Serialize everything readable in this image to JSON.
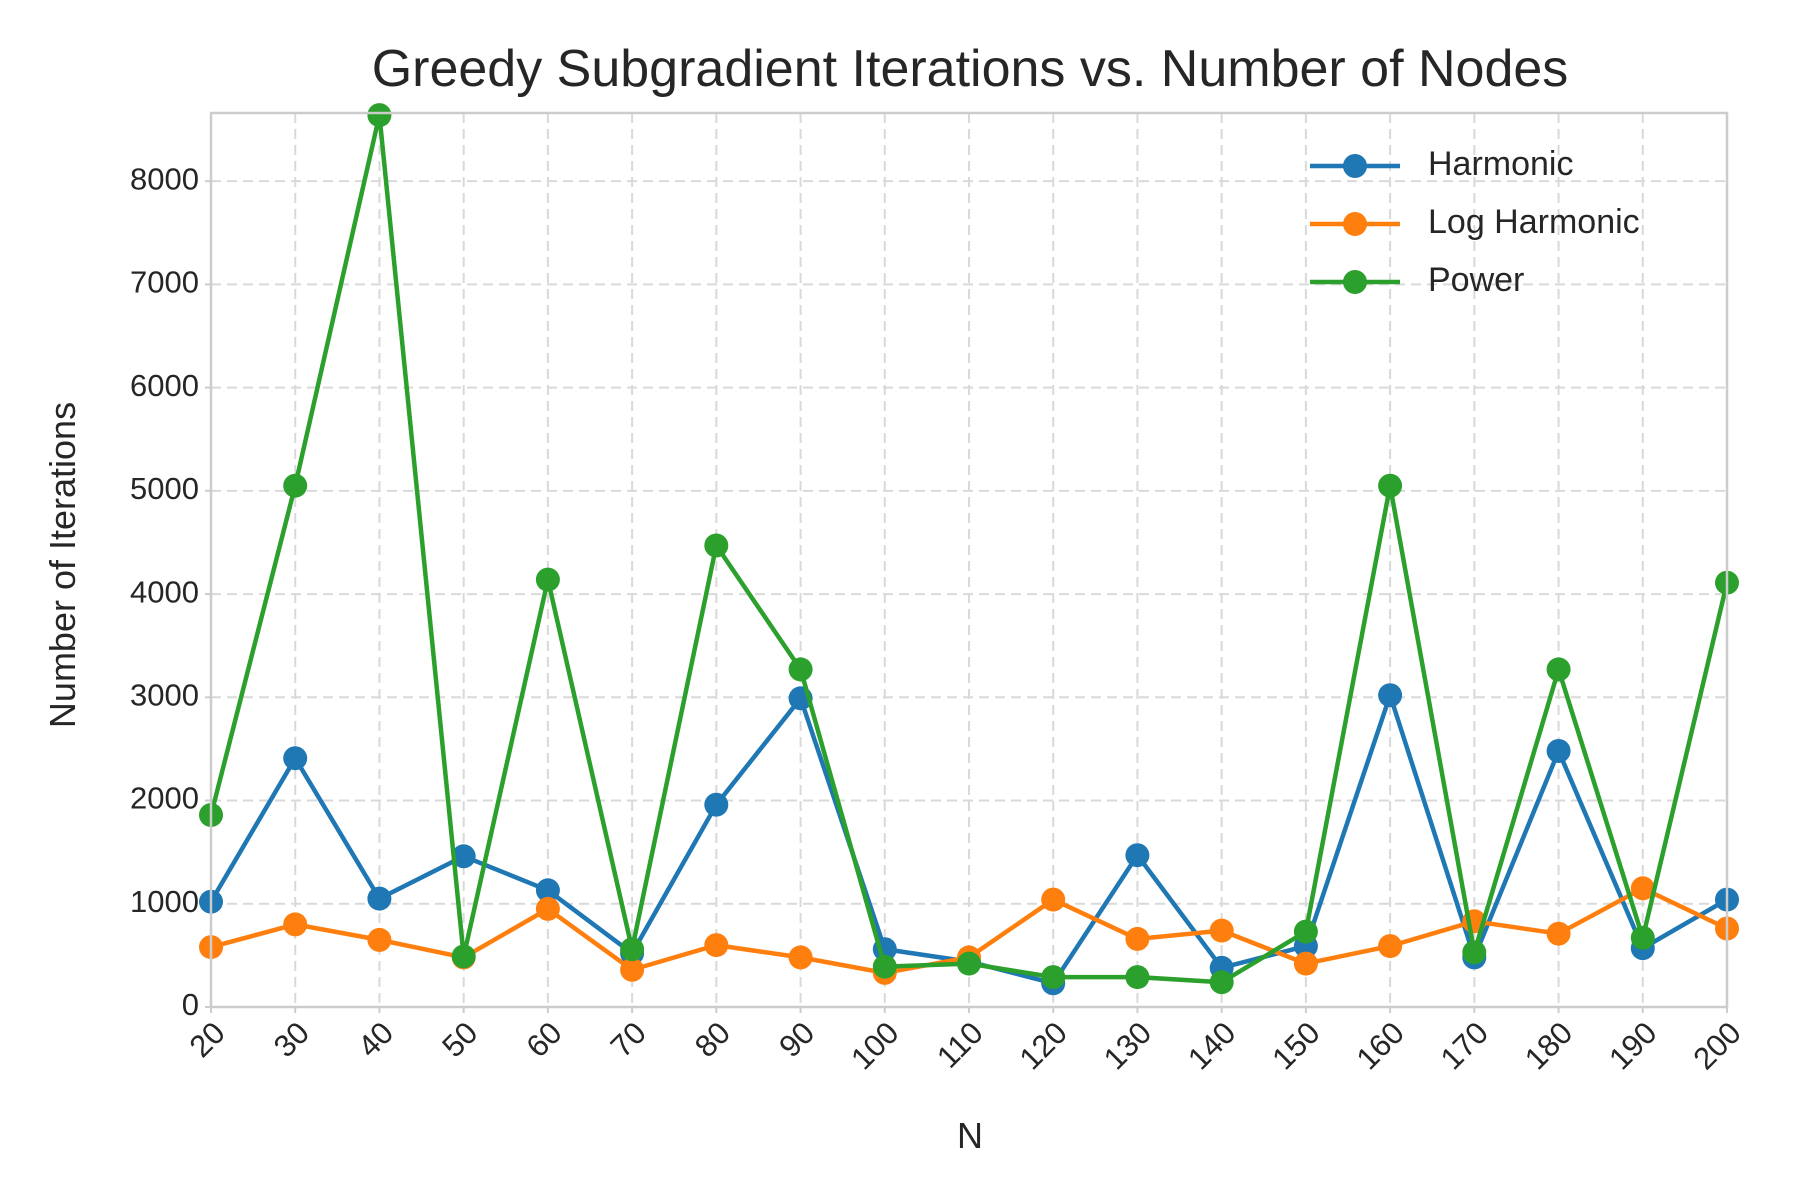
{
  "chart_data": {
    "type": "line",
    "title": "Greedy Subgradient Iterations vs. Number of Nodes",
    "xlabel": "N",
    "ylabel": "Number of Iterations",
    "x": [
      20,
      30,
      40,
      50,
      60,
      70,
      80,
      90,
      100,
      110,
      120,
      130,
      140,
      150,
      160,
      170,
      180,
      190,
      200
    ],
    "x_tick_labels": [
      "20",
      "30",
      "40",
      "50",
      "60",
      "70",
      "80",
      "90",
      "100",
      "110",
      "120",
      "130",
      "140",
      "150",
      "160",
      "170",
      "180",
      "190",
      "200"
    ],
    "y_ticks": [
      0,
      1000,
      2000,
      3000,
      4000,
      5000,
      6000,
      7000,
      8000
    ],
    "y_tick_labels": [
      "0",
      "1000",
      "2000",
      "3000",
      "4000",
      "5000",
      "6000",
      "7000",
      "8000"
    ],
    "xlim": [
      20,
      200
    ],
    "ylim": [
      0,
      8660
    ],
    "grid": true,
    "legend_position": "top-right",
    "series": [
      {
        "name": "Harmonic",
        "color": "#1f77b4",
        "values": [
          1020,
          2410,
          1050,
          1460,
          1130,
          520,
          1960,
          2990,
          560,
          440,
          230,
          1470,
          380,
          590,
          3020,
          480,
          2480,
          570,
          1040
        ]
      },
      {
        "name": "Log Harmonic",
        "color": "#ff7f0e",
        "values": [
          580,
          800,
          650,
          480,
          950,
          360,
          600,
          480,
          330,
          480,
          1040,
          660,
          740,
          420,
          590,
          830,
          710,
          1150,
          760
        ]
      },
      {
        "name": "Power",
        "color": "#2ca02c",
        "values": [
          1860,
          5050,
          8640,
          490,
          4140,
          560,
          4470,
          3270,
          390,
          420,
          290,
          290,
          240,
          730,
          5050,
          530,
          3270,
          670,
          4110
        ]
      }
    ]
  }
}
